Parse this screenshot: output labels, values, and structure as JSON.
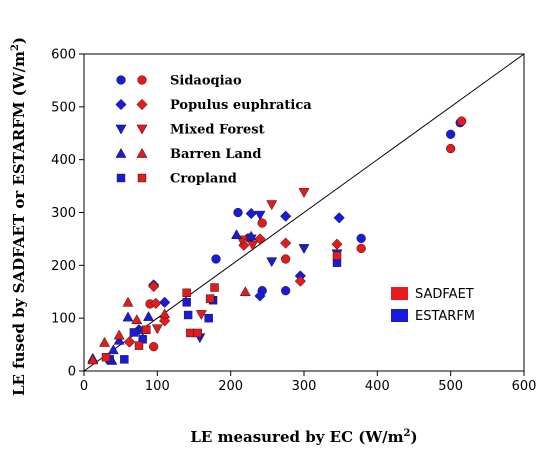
{
  "chart_data": {
    "type": "scatter",
    "title": "",
    "xlabel": "LE measured by EC (W/m",
    "xlabel_sup": "2",
    "xlabel_end": ")",
    "ylabel": "LE fused by SADFAET or ESTARFM (W/m",
    "ylabel_sup": "2",
    "ylabel_end": ")",
    "xlim": [
      0,
      600
    ],
    "ylim": [
      0,
      600
    ],
    "xticks": [
      "0",
      "100",
      "200",
      "300",
      "400",
      "500",
      "600"
    ],
    "yticks": [
      "0",
      "100",
      "200",
      "300",
      "400",
      "500",
      "600"
    ],
    "one_to_one_line": true,
    "grid": false,
    "legend_position": "top-left",
    "legend2_position": "bottom-right",
    "colors": {
      "SADFAET": "#e8191c",
      "ESTARFM": "#1a1adc"
    },
    "methods": [
      {
        "name": "SADFAET",
        "color": "#e8191c"
      },
      {
        "name": "ESTARFM",
        "color": "#1a1adc"
      }
    ],
    "sites": [
      {
        "name": "Sidaoqiao",
        "marker": "circle"
      },
      {
        "name": "Populus euphratica",
        "marker": "diamond"
      },
      {
        "name": "Mixed Forest",
        "marker": "triangle-down"
      },
      {
        "name": "Barren Land",
        "marker": "triangle-up"
      },
      {
        "name": "Cropland",
        "marker": "square"
      }
    ],
    "points": [
      {
        "site": "Sidaoqiao",
        "method": "ESTARFM",
        "data": [
          [
            500,
            448
          ],
          [
            513,
            470
          ],
          [
            378,
            251
          ],
          [
            210,
            300
          ],
          [
            180,
            212
          ],
          [
            275,
            152
          ],
          [
            243,
            152
          ]
        ]
      },
      {
        "site": "Sidaoqiao",
        "method": "SADFAET",
        "data": [
          [
            500,
            421
          ],
          [
            515,
            473
          ],
          [
            378,
            232
          ],
          [
            225,
            252
          ],
          [
            275,
            212
          ],
          [
            243,
            280
          ],
          [
            90,
            127
          ],
          [
            95,
            46
          ]
        ]
      },
      {
        "site": "Populus euphratica",
        "method": "ESTARFM",
        "data": [
          [
            95,
            163
          ],
          [
            110,
            130
          ],
          [
            62,
            55
          ],
          [
            348,
            290
          ],
          [
            295,
            180
          ],
          [
            228,
            298
          ],
          [
            275,
            293
          ],
          [
            240,
            142
          ],
          [
            75,
            78
          ]
        ]
      },
      {
        "site": "Populus euphratica",
        "method": "SADFAET",
        "data": [
          [
            95,
            160
          ],
          [
            110,
            95
          ],
          [
            62,
            55
          ],
          [
            275,
            242
          ],
          [
            240,
            250
          ],
          [
            345,
            240
          ],
          [
            295,
            170
          ],
          [
            218,
            238
          ],
          [
            98,
            128
          ]
        ]
      },
      {
        "site": "Mixed Forest",
        "method": "ESTARFM",
        "data": [
          [
            240,
            295
          ],
          [
            300,
            232
          ],
          [
            228,
            250
          ],
          [
            256,
            207
          ],
          [
            158,
            63
          ],
          [
            80,
            76
          ],
          [
            345,
            222
          ]
        ]
      },
      {
        "site": "Mixed Forest",
        "method": "SADFAET",
        "data": [
          [
            300,
            338
          ],
          [
            256,
            315
          ],
          [
            230,
            238
          ],
          [
            215,
            248
          ],
          [
            160,
            107
          ],
          [
            100,
            80
          ]
        ]
      },
      {
        "site": "Barren Land",
        "method": "ESTARFM",
        "data": [
          [
            208,
            258
          ],
          [
            228,
            255
          ],
          [
            40,
            40
          ],
          [
            38,
            20
          ],
          [
            12,
            24
          ],
          [
            88,
            103
          ],
          [
            48,
            58
          ],
          [
            60,
            102
          ]
        ]
      },
      {
        "site": "Barren Land",
        "method": "SADFAET",
        "data": [
          [
            60,
            130
          ],
          [
            220,
            150
          ],
          [
            28,
            54
          ],
          [
            12,
            21
          ],
          [
            72,
            97
          ],
          [
            48,
            68
          ],
          [
            110,
            108
          ]
        ]
      },
      {
        "site": "Cropland",
        "method": "ESTARFM",
        "data": [
          [
            140,
            130
          ],
          [
            142,
            106
          ],
          [
            170,
            100
          ],
          [
            345,
            205
          ],
          [
            176,
            134
          ],
          [
            35,
            22
          ],
          [
            55,
            22
          ],
          [
            80,
            60
          ],
          [
            68,
            73
          ]
        ]
      },
      {
        "site": "Cropland",
        "method": "SADFAET",
        "data": [
          [
            140,
            148
          ],
          [
            145,
            72
          ],
          [
            178,
            158
          ],
          [
            172,
            137
          ],
          [
            345,
            218
          ],
          [
            30,
            26
          ],
          [
            75,
            48
          ],
          [
            85,
            78
          ],
          [
            155,
            72
          ]
        ]
      }
    ]
  }
}
